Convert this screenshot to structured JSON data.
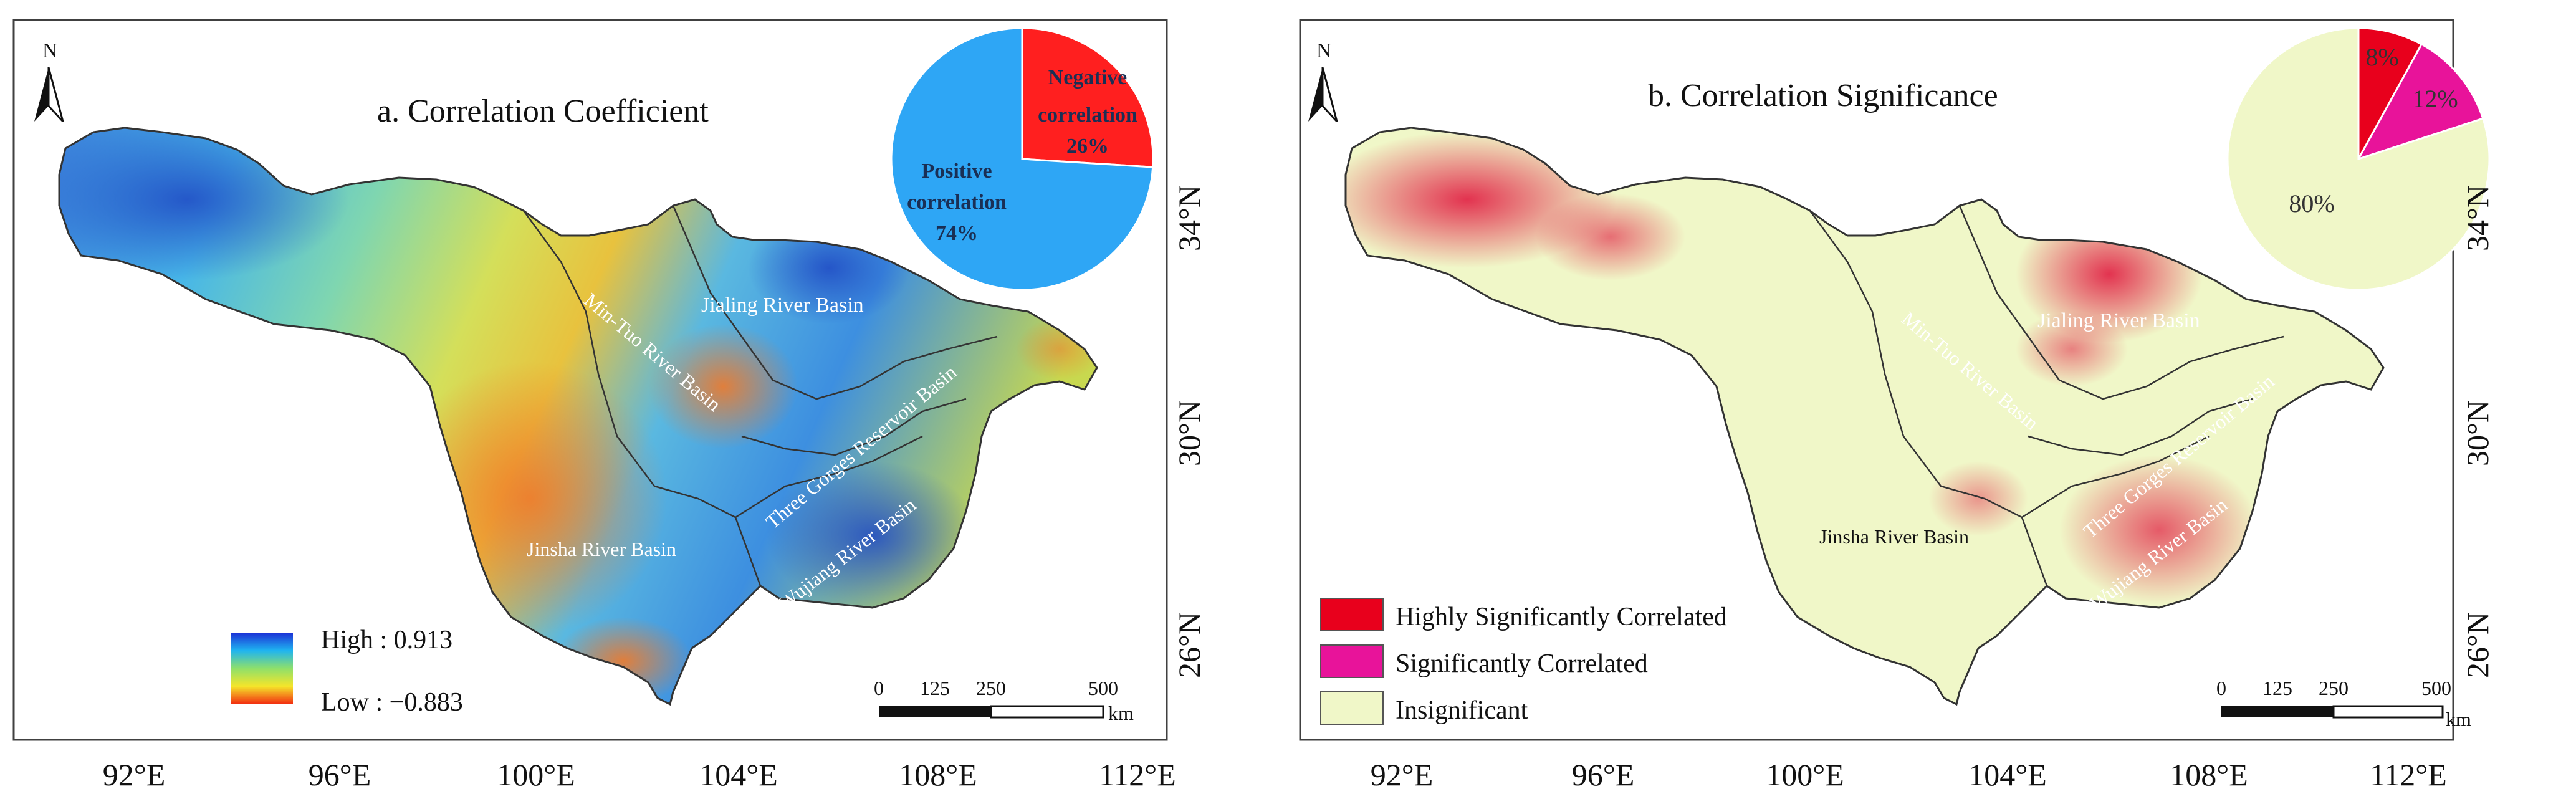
{
  "panels": [
    {
      "id": "a",
      "title": "a. Correlation Coefficient",
      "x_ticks": [
        "92°E",
        "96°E",
        "100°E",
        "104°E",
        "108°E",
        "112°E"
      ],
      "y_ticks": [
        "34°N",
        "30°N",
        "26°N"
      ],
      "north": "N",
      "basins": {
        "jialing": "Jialing River Basin",
        "mintuo": "Min-Tuo River Basin",
        "threegorges": "Three Gorges Reservoir Basin",
        "jinsha": "Jinsha River Basin",
        "wujiang": "Wujiang River Basin"
      },
      "legend": {
        "high": "High : 0.913",
        "low": "Low : −0.883"
      },
      "scalebar": {
        "labels": [
          "0",
          "125",
          "250",
          "500"
        ],
        "unit": "km"
      },
      "pie": {
        "slices": [
          {
            "name": "Negative correlation",
            "line1": "Negative",
            "line2": "correlation",
            "pct_label": "26%",
            "value": 26,
            "color": "#ff1f1f"
          },
          {
            "name": "Positive correlation",
            "line1": "Positive",
            "line2": "correlation",
            "pct_label": "74%",
            "value": 74,
            "color": "#2ea6f5"
          }
        ]
      }
    },
    {
      "id": "b",
      "title": "b.  Correlation Significance",
      "x_ticks": [
        "92°E",
        "96°E",
        "100°E",
        "104°E",
        "108°E",
        "112°E"
      ],
      "y_ticks": [
        "34°N",
        "30°N",
        "26°N"
      ],
      "north": "N",
      "basins": {
        "jialing": "Jialing River Basin",
        "mintuo": "Min-Tuo River Basin",
        "threegorges": "Three Gorges Reservoir Basin",
        "jinsha": "Jinsha River Basin",
        "wujiang": "Wujiang River Basin"
      },
      "legend": {
        "items": [
          {
            "label": "Highly Significantly Correlated",
            "color": "#e8001c"
          },
          {
            "label": "Significantly Correlated",
            "color": "#e8139a"
          },
          {
            "label": "Insignificant",
            "color": "#f0f7c8"
          }
        ]
      },
      "scalebar": {
        "labels": [
          "0",
          "125",
          "250",
          "500"
        ],
        "unit": "km"
      },
      "pie": {
        "slices": [
          {
            "name": "Highly Significantly Correlated",
            "pct_label": "8%",
            "value": 8,
            "color": "#e8001c"
          },
          {
            "name": "Significantly Correlated",
            "pct_label": "12%",
            "value": 12,
            "color": "#e8139a"
          },
          {
            "name": "Insignificant",
            "pct_label": "80%",
            "value": 80,
            "color": "#f0f7c8"
          }
        ]
      }
    }
  ]
}
